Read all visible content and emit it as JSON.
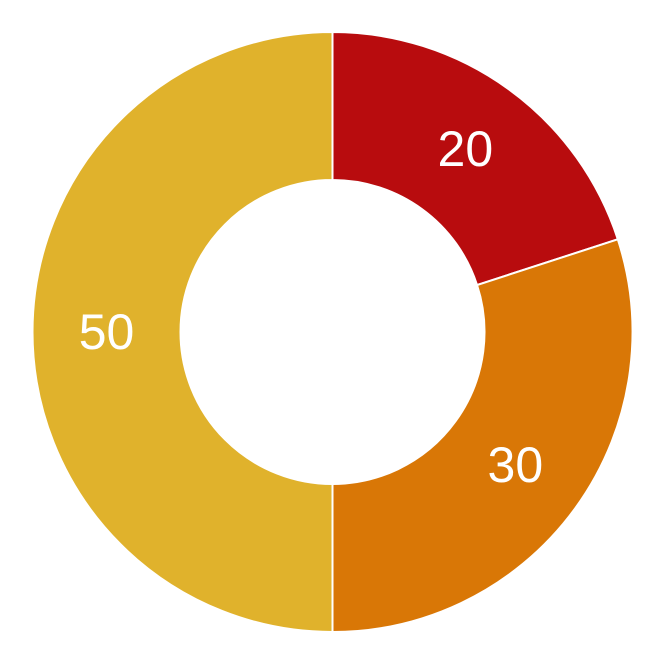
{
  "chart_data": {
    "type": "pie",
    "style": "donut",
    "title": "",
    "categories": [
      "",
      "",
      ""
    ],
    "values": [
      20,
      30,
      50
    ],
    "labels": [
      "20",
      "30",
      "50"
    ],
    "colors": [
      "#b80c0e",
      "#d97706",
      "#e0b22c"
    ],
    "start_angle_deg": 0,
    "direction": "clockwise",
    "legend": "none"
  }
}
